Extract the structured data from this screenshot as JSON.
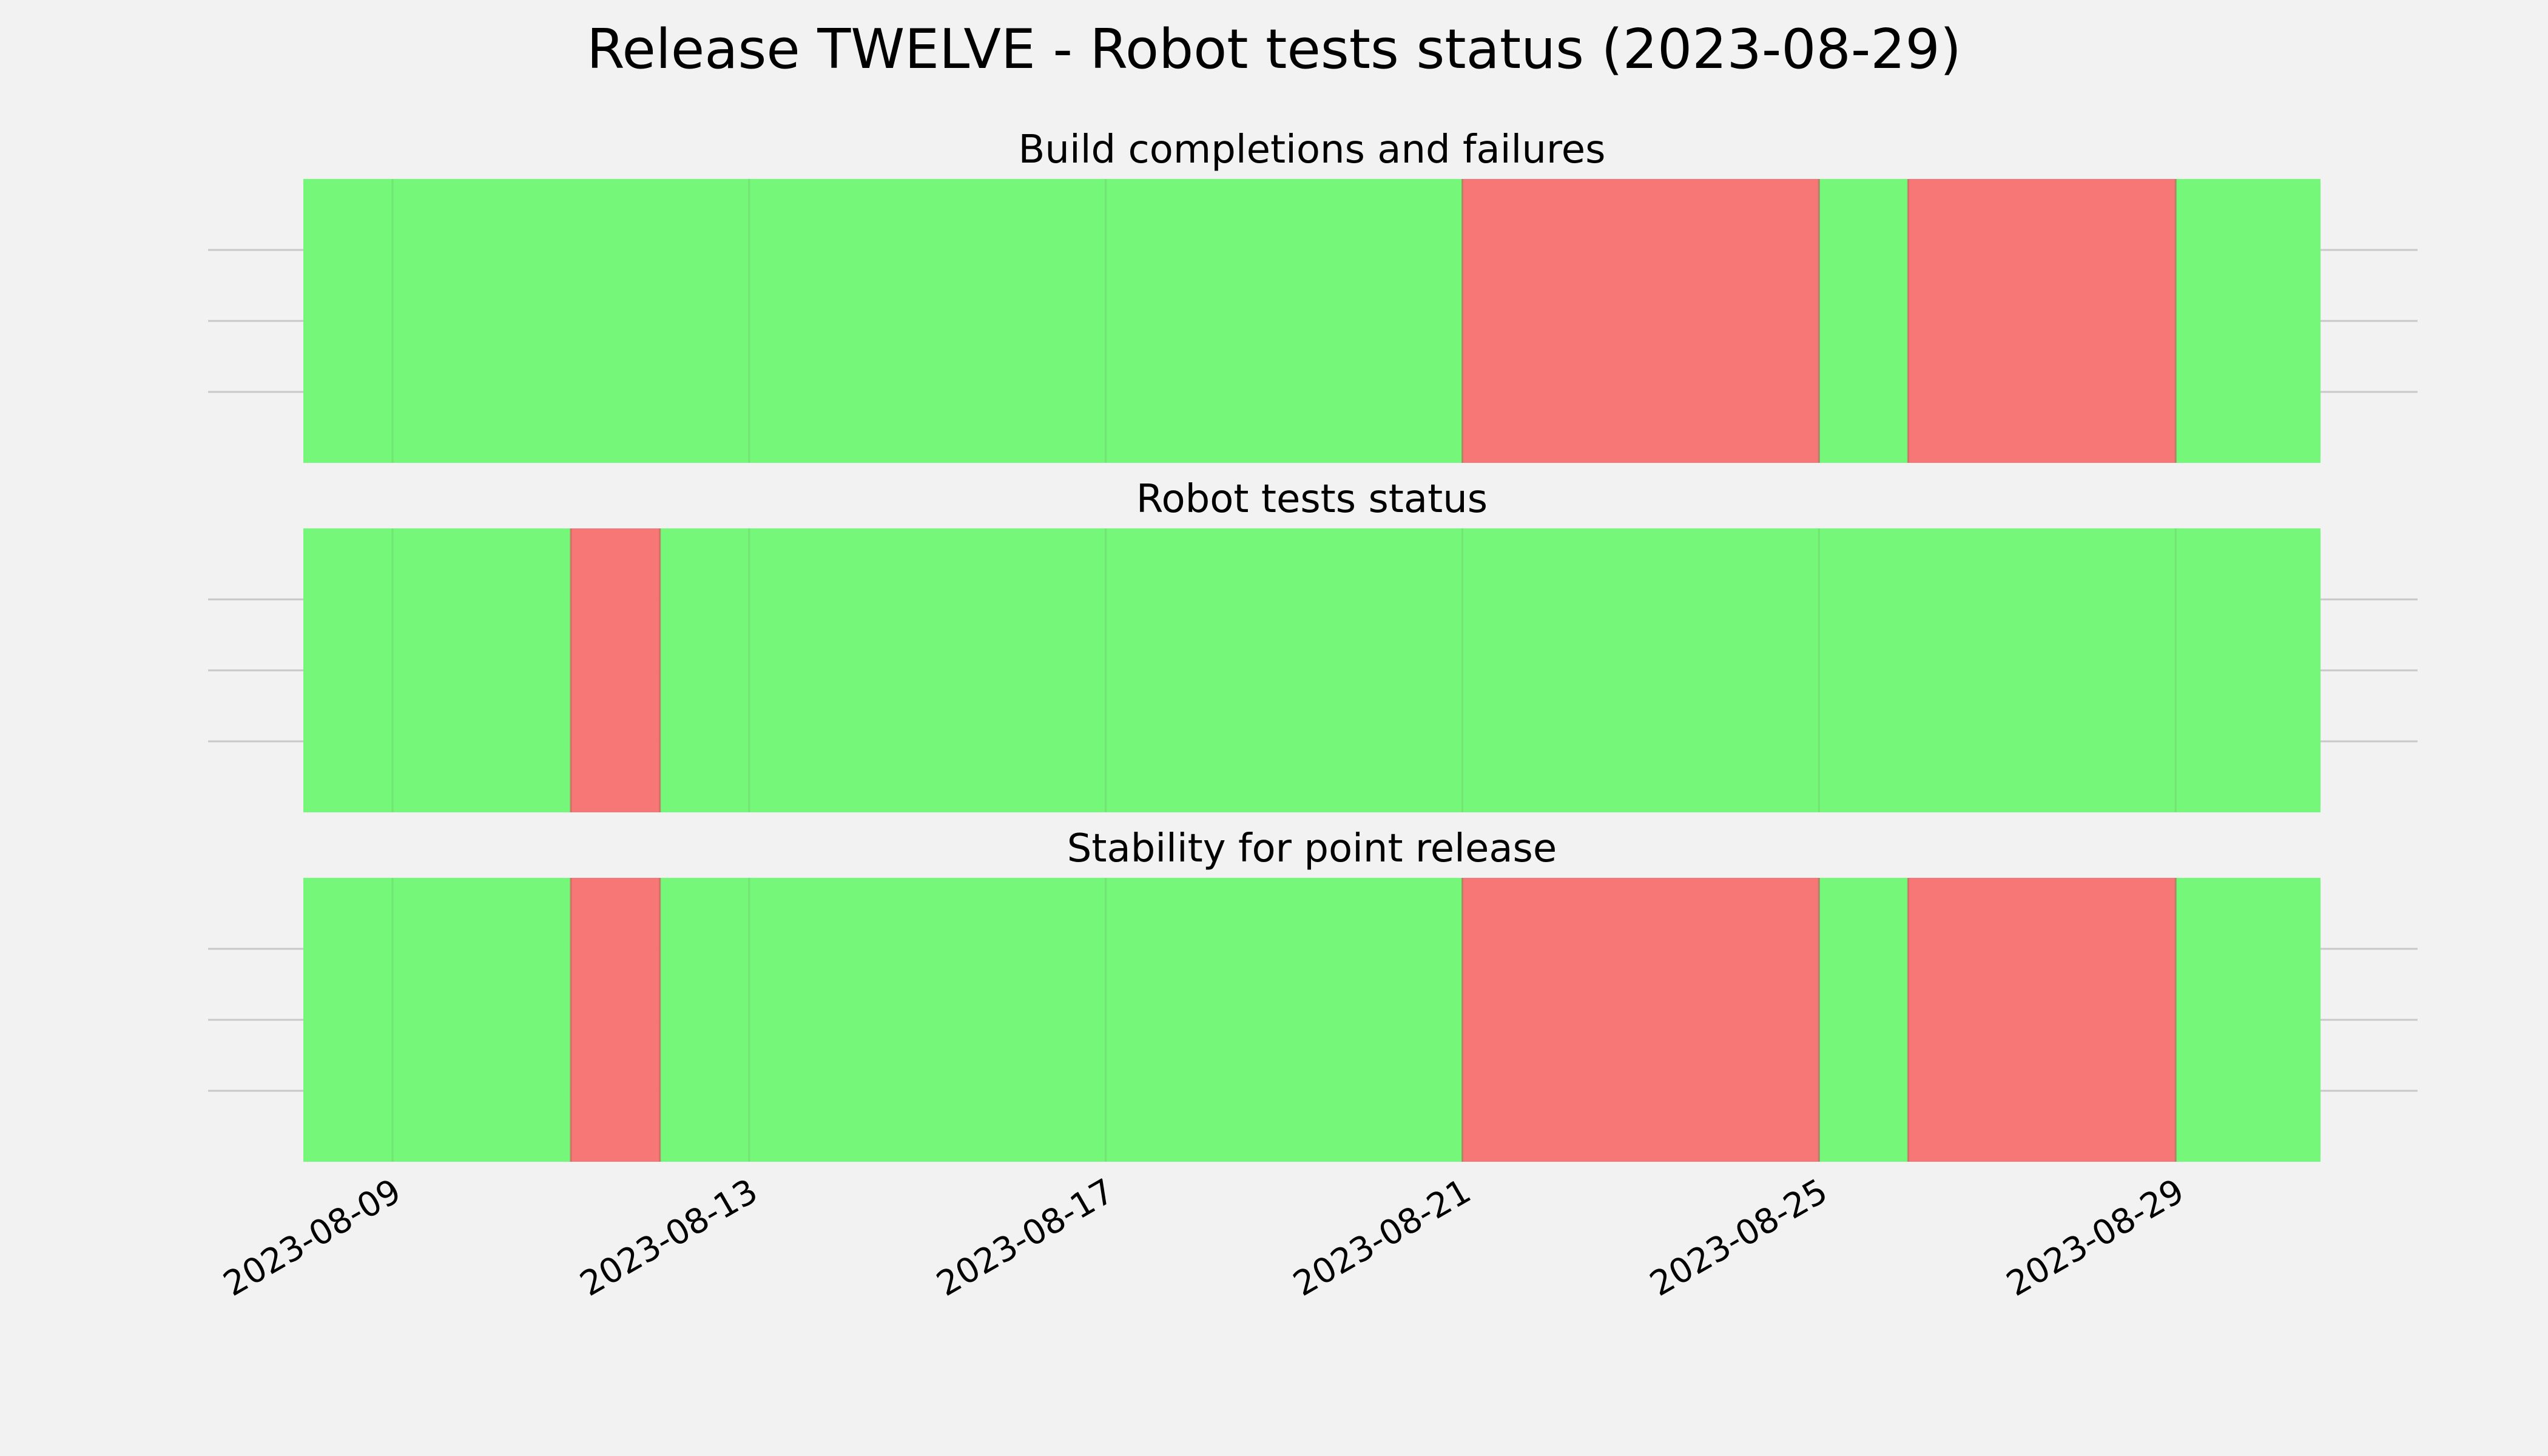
{
  "colors": {
    "background": "#f2f2f2",
    "pass": "#75f879",
    "fail": "#f77676",
    "grid": "#c8c8c8",
    "text": "#000000"
  },
  "chart_data": {
    "type": "timeline",
    "title": "Release TWELVE - Robot tests status (2023-08-29)",
    "x_range": [
      "2023-08-08",
      "2023-08-30T15:00"
    ],
    "x_ticks": [
      "2023-08-09",
      "2023-08-13",
      "2023-08-17",
      "2023-08-21",
      "2023-08-25",
      "2023-08-29"
    ],
    "grid": true,
    "panels": [
      {
        "title": "Build completions and failures",
        "segments": [
          {
            "start": "2023-08-08",
            "end": "2023-08-21",
            "status": "pass"
          },
          {
            "start": "2023-08-21",
            "end": "2023-08-25",
            "status": "fail"
          },
          {
            "start": "2023-08-25",
            "end": "2023-08-26",
            "status": "pass"
          },
          {
            "start": "2023-08-26",
            "end": "2023-08-29",
            "status": "fail"
          },
          {
            "start": "2023-08-29",
            "end": "2023-08-30T15:00",
            "status": "pass"
          }
        ]
      },
      {
        "title": "Robot tests status",
        "segments": [
          {
            "start": "2023-08-08",
            "end": "2023-08-11",
            "status": "pass"
          },
          {
            "start": "2023-08-11",
            "end": "2023-08-12",
            "status": "fail"
          },
          {
            "start": "2023-08-12",
            "end": "2023-08-30T15:00",
            "status": "pass"
          }
        ]
      },
      {
        "title": "Stability for point release",
        "segments": [
          {
            "start": "2023-08-08",
            "end": "2023-08-11",
            "status": "pass"
          },
          {
            "start": "2023-08-11",
            "end": "2023-08-12",
            "status": "fail"
          },
          {
            "start": "2023-08-12",
            "end": "2023-08-21",
            "status": "pass"
          },
          {
            "start": "2023-08-21",
            "end": "2023-08-25",
            "status": "fail"
          },
          {
            "start": "2023-08-25",
            "end": "2023-08-26",
            "status": "pass"
          },
          {
            "start": "2023-08-26",
            "end": "2023-08-29",
            "status": "fail"
          },
          {
            "start": "2023-08-29",
            "end": "2023-08-30T15:00",
            "status": "pass"
          }
        ]
      }
    ]
  }
}
